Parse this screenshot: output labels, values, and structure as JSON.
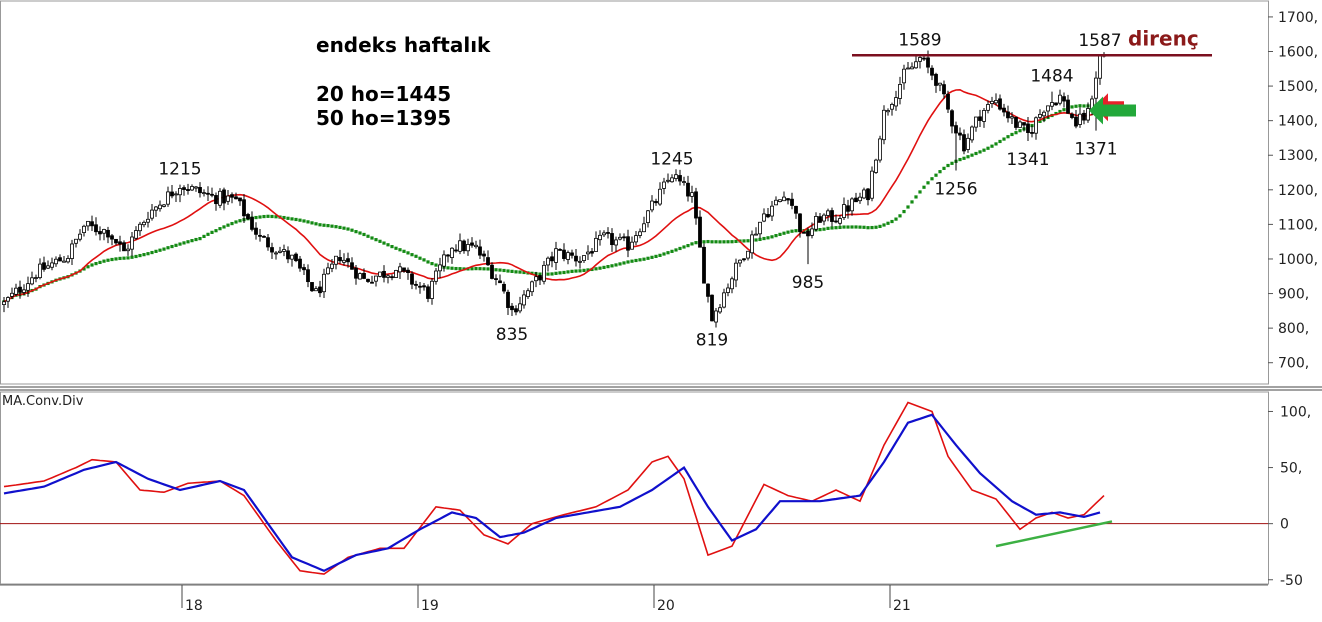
{
  "chart_data": [
    {
      "type": "candlestick",
      "info": {
        "title": "endeks haftalık",
        "ma20": "20 ho=1445",
        "ma50": "50 ho=1395"
      },
      "resistance": {
        "label": "direnç",
        "value": 1589,
        "color": "#7b0f1f"
      },
      "ylim": [
        650,
        1720
      ],
      "y_ticks": [
        "1700,",
        "1600,",
        "1500,",
        "1400,",
        "1300,",
        "1200,",
        "1100,",
        "1000,",
        "900,",
        "800,",
        "700,"
      ],
      "y_tick_values": [
        1700,
        1600,
        1500,
        1400,
        1300,
        1200,
        1100,
        1000,
        900,
        800,
        700
      ],
      "x_ticks": [
        "18",
        "19",
        "20",
        "21"
      ],
      "annotations": [
        {
          "text": "1215",
          "week": 44,
          "value": 1215,
          "pos": "above"
        },
        {
          "text": "835",
          "week": 127,
          "value": 835,
          "pos": "below"
        },
        {
          "text": "1245",
          "week": 167,
          "value": 1245,
          "pos": "above"
        },
        {
          "text": "819",
          "week": 177,
          "value": 819,
          "pos": "below"
        },
        {
          "text": "985",
          "week": 201,
          "value": 985,
          "pos": "below"
        },
        {
          "text": "1589",
          "week": 229,
          "value": 1589,
          "pos": "above"
        },
        {
          "text": "1256",
          "week": 238,
          "value": 1256,
          "pos": "below"
        },
        {
          "text": "1484",
          "week": 262,
          "value": 1484,
          "pos": "above"
        },
        {
          "text": "1341",
          "week": 256,
          "value": 1341,
          "pos": "below"
        },
        {
          "text": "1587",
          "week": 274,
          "value": 1587,
          "pos": "above"
        },
        {
          "text": "1371",
          "week": 273,
          "value": 1371,
          "pos": "below"
        }
      ],
      "anchors": [
        [
          0,
          870
        ],
        [
          8,
          960
        ],
        [
          16,
          1010
        ],
        [
          20,
          1095
        ],
        [
          26,
          1080
        ],
        [
          30,
          1020
        ],
        [
          36,
          1130
        ],
        [
          44,
          1215
        ],
        [
          52,
          1180
        ],
        [
          58,
          1170
        ],
        [
          64,
          1060
        ],
        [
          72,
          1000
        ],
        [
          78,
          900
        ],
        [
          84,
          1010
        ],
        [
          90,
          940
        ],
        [
          98,
          970
        ],
        [
          106,
          900
        ],
        [
          112,
          1040
        ],
        [
          118,
          1030
        ],
        [
          124,
          930
        ],
        [
          127,
          850
        ],
        [
          132,
          920
        ],
        [
          138,
          1020
        ],
        [
          144,
          1000
        ],
        [
          150,
          1060
        ],
        [
          156,
          1040
        ],
        [
          162,
          1150
        ],
        [
          167,
          1245
        ],
        [
          172,
          1180
        ],
        [
          175,
          950
        ],
        [
          177,
          830
        ],
        [
          182,
          950
        ],
        [
          186,
          1040
        ],
        [
          190,
          1130
        ],
        [
          196,
          1190
        ],
        [
          200,
          1060
        ],
        [
          204,
          1120
        ],
        [
          208,
          1120
        ],
        [
          212,
          1160
        ],
        [
          216,
          1190
        ],
        [
          220,
          1420
        ],
        [
          225,
          1530
        ],
        [
          229,
          1580
        ],
        [
          233,
          1520
        ],
        [
          237,
          1400
        ],
        [
          240,
          1330
        ],
        [
          244,
          1420
        ],
        [
          248,
          1460
        ],
        [
          252,
          1400
        ],
        [
          256,
          1360
        ],
        [
          260,
          1440
        ],
        [
          264,
          1470
        ],
        [
          268,
          1390
        ],
        [
          271,
          1420
        ],
        [
          274,
          1587
        ]
      ],
      "ma_short_color": "#e01010",
      "ma_long_color": "#138a13"
    },
    {
      "type": "line",
      "title": "MA.Conv.Div",
      "ylim": [
        -52,
        112
      ],
      "y_ticks": [
        "100,",
        "50,",
        "0",
        "-50"
      ],
      "y_tick_values": [
        100,
        50,
        0,
        -50
      ],
      "zero_line_color": "#a01010",
      "series": [
        {
          "color": "#e01010",
          "anchors": [
            [
              0,
              33
            ],
            [
              10,
              38
            ],
            [
              18,
              50
            ],
            [
              22,
              57
            ],
            [
              28,
              55
            ],
            [
              34,
              30
            ],
            [
              40,
              28
            ],
            [
              46,
              36
            ],
            [
              54,
              38
            ],
            [
              60,
              25
            ],
            [
              68,
              -15
            ],
            [
              74,
              -42
            ],
            [
              80,
              -45
            ],
            [
              86,
              -30
            ],
            [
              94,
              -22
            ],
            [
              100,
              -22
            ],
            [
              108,
              15
            ],
            [
              114,
              12
            ],
            [
              120,
              -10
            ],
            [
              126,
              -18
            ],
            [
              132,
              0
            ],
            [
              140,
              8
            ],
            [
              148,
              15
            ],
            [
              156,
              30
            ],
            [
              162,
              55
            ],
            [
              166,
              60
            ],
            [
              170,
              40
            ],
            [
              176,
              -28
            ],
            [
              182,
              -20
            ],
            [
              190,
              35
            ],
            [
              196,
              25
            ],
            [
              202,
              20
            ],
            [
              208,
              30
            ],
            [
              214,
              20
            ],
            [
              220,
              70
            ],
            [
              226,
              108
            ],
            [
              232,
              100
            ],
            [
              236,
              60
            ],
            [
              242,
              30
            ],
            [
              248,
              22
            ],
            [
              254,
              -5
            ],
            [
              258,
              5
            ],
            [
              262,
              10
            ],
            [
              266,
              5
            ],
            [
              270,
              8
            ],
            [
              275,
              25
            ]
          ]
        },
        {
          "color": "#1010cc",
          "anchors": [
            [
              0,
              27
            ],
            [
              10,
              33
            ],
            [
              20,
              48
            ],
            [
              28,
              55
            ],
            [
              36,
              40
            ],
            [
              44,
              30
            ],
            [
              54,
              38
            ],
            [
              60,
              30
            ],
            [
              66,
              0
            ],
            [
              72,
              -30
            ],
            [
              80,
              -42
            ],
            [
              88,
              -28
            ],
            [
              96,
              -22
            ],
            [
              104,
              -5
            ],
            [
              112,
              10
            ],
            [
              118,
              5
            ],
            [
              124,
              -12
            ],
            [
              130,
              -8
            ],
            [
              138,
              5
            ],
            [
              146,
              10
            ],
            [
              154,
              15
            ],
            [
              162,
              30
            ],
            [
              170,
              50
            ],
            [
              176,
              15
            ],
            [
              182,
              -15
            ],
            [
              188,
              -5
            ],
            [
              194,
              20
            ],
            [
              204,
              20
            ],
            [
              214,
              25
            ],
            [
              220,
              55
            ],
            [
              226,
              90
            ],
            [
              232,
              97
            ],
            [
              238,
              70
            ],
            [
              244,
              45
            ],
            [
              252,
              20
            ],
            [
              258,
              8
            ],
            [
              264,
              10
            ],
            [
              270,
              6
            ],
            [
              274,
              10
            ]
          ]
        }
      ],
      "trendline": {
        "color": "#3cb043"
      }
    }
  ]
}
